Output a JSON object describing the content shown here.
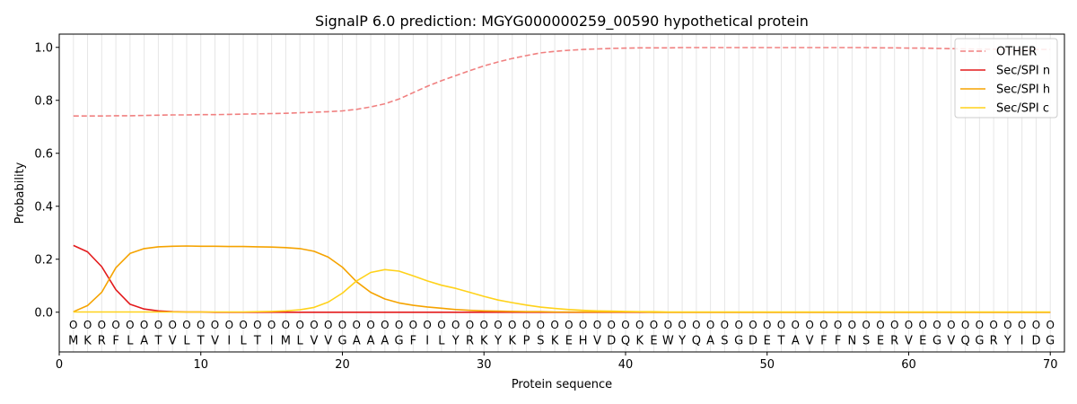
{
  "chart_data": {
    "type": "line",
    "title": "SignalP 6.0 prediction: MGYG000000259_00590 hypothetical protein",
    "xlabel": "Protein sequence",
    "ylabel": "Probability",
    "xlim": [
      0,
      71
    ],
    "ylim": [
      -0.15,
      1.05
    ],
    "x_ticks": [
      0,
      10,
      20,
      30,
      40,
      50,
      60,
      70
    ],
    "y_ticks": [
      0.0,
      0.2,
      0.4,
      0.6,
      0.8,
      1.0
    ],
    "y_tick_labels": [
      "0.0",
      "0.2",
      "0.4",
      "0.6",
      "0.8",
      "1.0"
    ],
    "grid": "vertical lines at each residue",
    "legend_position": "top-right",
    "sequence": [
      "M",
      "K",
      "R",
      "F",
      "L",
      "A",
      "T",
      "V",
      "L",
      "T",
      "V",
      "I",
      "L",
      "T",
      "I",
      "M",
      "L",
      "V",
      "V",
      "G",
      "A",
      "A",
      "A",
      "G",
      "F",
      "I",
      "L",
      "Y",
      "R",
      "K",
      "Y",
      "K",
      "P",
      "S",
      "K",
      "E",
      "H",
      "V",
      "D",
      "Q",
      "K",
      "E",
      "W",
      "Y",
      "Q",
      "A",
      "S",
      "G",
      "D",
      "E",
      "T",
      "A",
      "V",
      "F",
      "F",
      "N",
      "S",
      "E",
      "R",
      "V",
      "E",
      "G",
      "V",
      "Q",
      "G",
      "R",
      "Y",
      "I",
      "D",
      "G"
    ],
    "position_labels": [
      "O",
      "O",
      "O",
      "O",
      "O",
      "O",
      "O",
      "O",
      "O",
      "O",
      "O",
      "O",
      "O",
      "O",
      "O",
      "O",
      "O",
      "O",
      "O",
      "O",
      "O",
      "O",
      "O",
      "O",
      "O",
      "O",
      "O",
      "O",
      "O",
      "O",
      "O",
      "O",
      "O",
      "O",
      "O",
      "O",
      "O",
      "O",
      "O",
      "O",
      "O",
      "O",
      "O",
      "O",
      "O",
      "O",
      "O",
      "O",
      "O",
      "O",
      "O",
      "O",
      "O",
      "O",
      "O",
      "O",
      "O",
      "O",
      "O",
      "O",
      "O",
      "O",
      "O",
      "O",
      "O",
      "O",
      "O",
      "O",
      "O",
      "O"
    ],
    "series": [
      {
        "name": "OTHER",
        "color": "#f08080",
        "dash": "dashed",
        "values": [
          0.741,
          0.741,
          0.741,
          0.742,
          0.742,
          0.743,
          0.744,
          0.745,
          0.745,
          0.746,
          0.746,
          0.747,
          0.748,
          0.749,
          0.75,
          0.751,
          0.753,
          0.755,
          0.757,
          0.76,
          0.766,
          0.775,
          0.787,
          0.805,
          0.829,
          0.853,
          0.874,
          0.893,
          0.912,
          0.93,
          0.945,
          0.958,
          0.969,
          0.979,
          0.985,
          0.989,
          0.992,
          0.994,
          0.996,
          0.997,
          0.998,
          0.998,
          0.998,
          0.999,
          0.999,
          0.999,
          0.999,
          0.999,
          0.999,
          0.999,
          0.999,
          0.999,
          0.999,
          0.999,
          0.999,
          0.999,
          0.999,
          0.998,
          0.998,
          0.997,
          0.997,
          0.996,
          0.995,
          0.994,
          0.993,
          0.993,
          0.992,
          0.992,
          0.992,
          0.992
        ]
      },
      {
        "name": "Sec/SPI n",
        "color": "#e31a1c",
        "dash": "solid",
        "values": [
          0.252,
          0.228,
          0.172,
          0.085,
          0.03,
          0.012,
          0.005,
          0.002,
          0.001,
          0.001,
          0,
          0,
          0,
          0,
          0,
          0,
          0,
          0,
          0,
          0,
          0,
          0,
          0,
          0,
          0,
          0,
          0,
          0,
          0,
          0,
          0,
          0,
          0,
          0,
          0,
          0,
          0,
          0,
          0,
          0,
          0,
          0,
          0,
          0,
          0,
          0,
          0,
          0,
          0,
          0,
          0,
          0,
          0,
          0,
          0,
          0,
          0,
          0,
          0,
          0,
          0,
          0,
          0,
          0,
          0,
          0,
          0,
          0,
          0,
          0
        ]
      },
      {
        "name": "Sec/SPI h",
        "color": "#f5a300",
        "dash": "solid",
        "values": [
          0.002,
          0.025,
          0.075,
          0.168,
          0.222,
          0.24,
          0.247,
          0.249,
          0.25,
          0.249,
          0.249,
          0.248,
          0.248,
          0.247,
          0.246,
          0.244,
          0.24,
          0.23,
          0.208,
          0.17,
          0.115,
          0.075,
          0.05,
          0.035,
          0.026,
          0.02,
          0.015,
          0.01,
          0.007,
          0.005,
          0.004,
          0.003,
          0.002,
          0.002,
          0.001,
          0.001,
          0.001,
          0.001,
          0.001,
          0.001,
          0.001,
          0,
          0,
          0,
          0,
          0,
          0,
          0,
          0,
          0,
          0,
          0,
          0,
          0,
          0,
          0,
          0,
          0,
          0,
          0,
          0,
          0,
          0,
          0,
          0,
          0,
          0,
          0,
          0,
          0
        ]
      },
      {
        "name": "Sec/SPI c",
        "color": "#ffd21a",
        "dash": "solid",
        "values": [
          0.001,
          0.001,
          0.001,
          0.001,
          0.001,
          0.001,
          0.001,
          0.001,
          0.001,
          0.001,
          0.001,
          0.001,
          0.001,
          0.002,
          0.003,
          0.005,
          0.009,
          0.018,
          0.038,
          0.072,
          0.118,
          0.15,
          0.161,
          0.155,
          0.137,
          0.118,
          0.102,
          0.09,
          0.075,
          0.06,
          0.046,
          0.036,
          0.027,
          0.019,
          0.014,
          0.01,
          0.007,
          0.005,
          0.004,
          0.003,
          0.002,
          0.002,
          0.001,
          0.001,
          0.001,
          0.001,
          0.001,
          0.001,
          0.001,
          0.001,
          0.001,
          0.001,
          0.001,
          0.001,
          0.001,
          0.001,
          0.001,
          0.001,
          0.001,
          0.001,
          0.001,
          0.001,
          0.001,
          0.001,
          0.001,
          0.001,
          0.001,
          0.001,
          0.001,
          0.001
        ]
      }
    ]
  }
}
